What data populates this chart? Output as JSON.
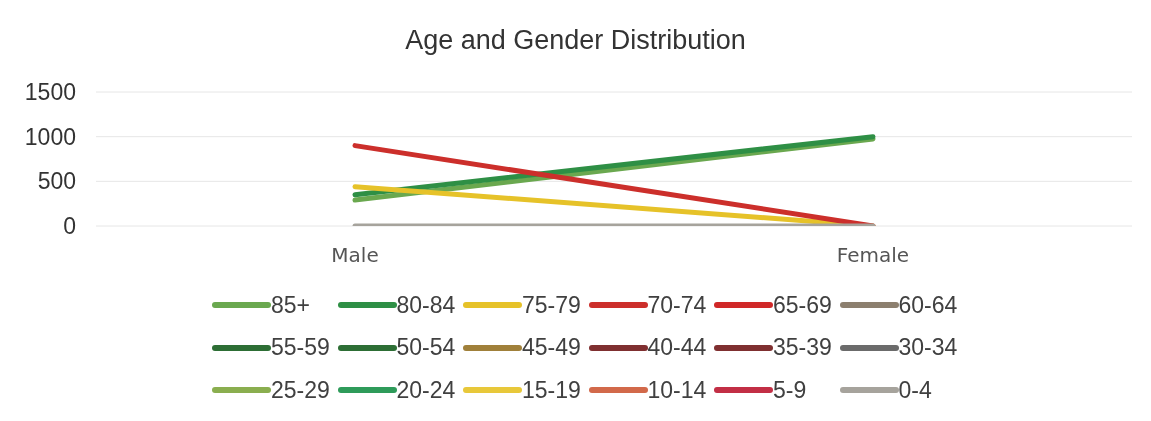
{
  "chart_data": {
    "type": "line",
    "title": "Age and Gender Distribution",
    "categories": [
      "Male",
      "Female"
    ],
    "series": [
      {
        "name": "85+",
        "color": "#6aa84f",
        "values": [
          290,
          975
        ]
      },
      {
        "name": "80-84",
        "color": "#2e8f45",
        "values": [
          350,
          1000
        ]
      },
      {
        "name": "75-79",
        "color": "#e6c229",
        "values": [
          440,
          0
        ]
      },
      {
        "name": "70-74",
        "color": "#cc2f2b",
        "values": [
          900,
          0
        ]
      },
      {
        "name": "65-69",
        "color": "#d02828",
        "values": [
          null,
          null
        ]
      },
      {
        "name": "60-64",
        "color": "#8c7f6e",
        "values": [
          null,
          null
        ]
      },
      {
        "name": "55-59",
        "color": "#2d6e35",
        "values": [
          null,
          null
        ]
      },
      {
        "name": "50-54",
        "color": "#2d6e35",
        "values": [
          null,
          null
        ]
      },
      {
        "name": "45-49",
        "color": "#a0803a",
        "values": [
          null,
          null
        ]
      },
      {
        "name": "40-44",
        "color": "#7f2f30",
        "values": [
          null,
          null
        ]
      },
      {
        "name": "35-39",
        "color": "#7f2f30",
        "values": [
          null,
          null
        ]
      },
      {
        "name": "30-34",
        "color": "#6b6b6b",
        "values": [
          null,
          null
        ]
      },
      {
        "name": "25-29",
        "color": "#8aae4f",
        "values": [
          null,
          null
        ]
      },
      {
        "name": "20-24",
        "color": "#2e9b5a",
        "values": [
          null,
          null
        ]
      },
      {
        "name": "15-19",
        "color": "#e8c83a",
        "values": [
          null,
          null
        ]
      },
      {
        "name": "10-14",
        "color": "#d2694a",
        "values": [
          null,
          null
        ]
      },
      {
        "name": "5-9",
        "color": "#c22f45",
        "values": [
          null,
          null
        ]
      },
      {
        "name": "0-4",
        "color": "#a6a39c",
        "values": [
          0,
          0
        ]
      }
    ],
    "ylim": [
      0,
      1500
    ],
    "yticks": [
      0,
      500,
      1000,
      1500
    ],
    "grid": "y",
    "legend": "bottom",
    "marker": "none",
    "line_style": "solid"
  }
}
